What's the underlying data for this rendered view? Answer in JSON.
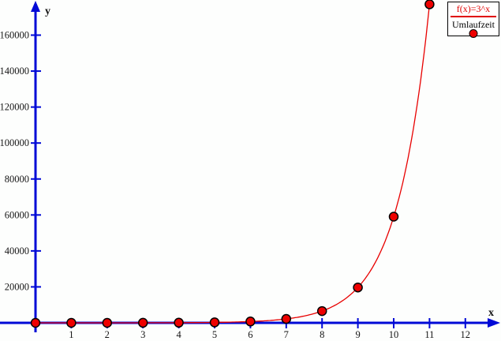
{
  "chart_data": {
    "type": "scatter",
    "title": "",
    "xlabel": "x",
    "ylabel": "y",
    "grid": false,
    "background": "#fdfefd",
    "axis_color": "#0009d6",
    "tick_label_color": "#151515",
    "x_ticks": [
      "1",
      "2",
      "3",
      "4",
      "5",
      "6",
      "7",
      "8",
      "9",
      "10",
      "11",
      "12"
    ],
    "y_ticks": [
      "20000",
      "40000",
      "60000",
      "80000",
      "100000",
      "120000",
      "140000",
      "160000"
    ],
    "y_tick_values": [
      20000,
      40000,
      60000,
      80000,
      100000,
      120000,
      140000,
      160000
    ],
    "x_tick_values": [
      1,
      2,
      3,
      4,
      5,
      6,
      7,
      8,
      9,
      10,
      11,
      12
    ],
    "xlim": [
      -1,
      13
    ],
    "ylim": [
      0,
      180000
    ],
    "series": [
      {
        "name": "f(x)=3^x",
        "type": "line",
        "color": "#e80000",
        "curve": {
          "base": 3,
          "x_min": 0,
          "x_max": 11
        }
      },
      {
        "name": "Umlaufzeit",
        "type": "points",
        "marker": "circle",
        "fill": "#ee0000",
        "stroke": "#000000",
        "x": [
          0,
          1,
          2,
          3,
          4,
          5,
          6,
          7,
          8,
          9,
          10,
          11
        ],
        "y": [
          1,
          3,
          9,
          27,
          81,
          243,
          729,
          2187,
          6561,
          19683,
          59049,
          177147
        ]
      }
    ],
    "legend": {
      "position": "top-right",
      "entries": [
        {
          "label": "f(x)=3^x",
          "sample": "line",
          "color": "#e00000"
        },
        {
          "label": "Umlaufzeit",
          "sample": "point",
          "color": "#ee0000"
        }
      ]
    }
  }
}
